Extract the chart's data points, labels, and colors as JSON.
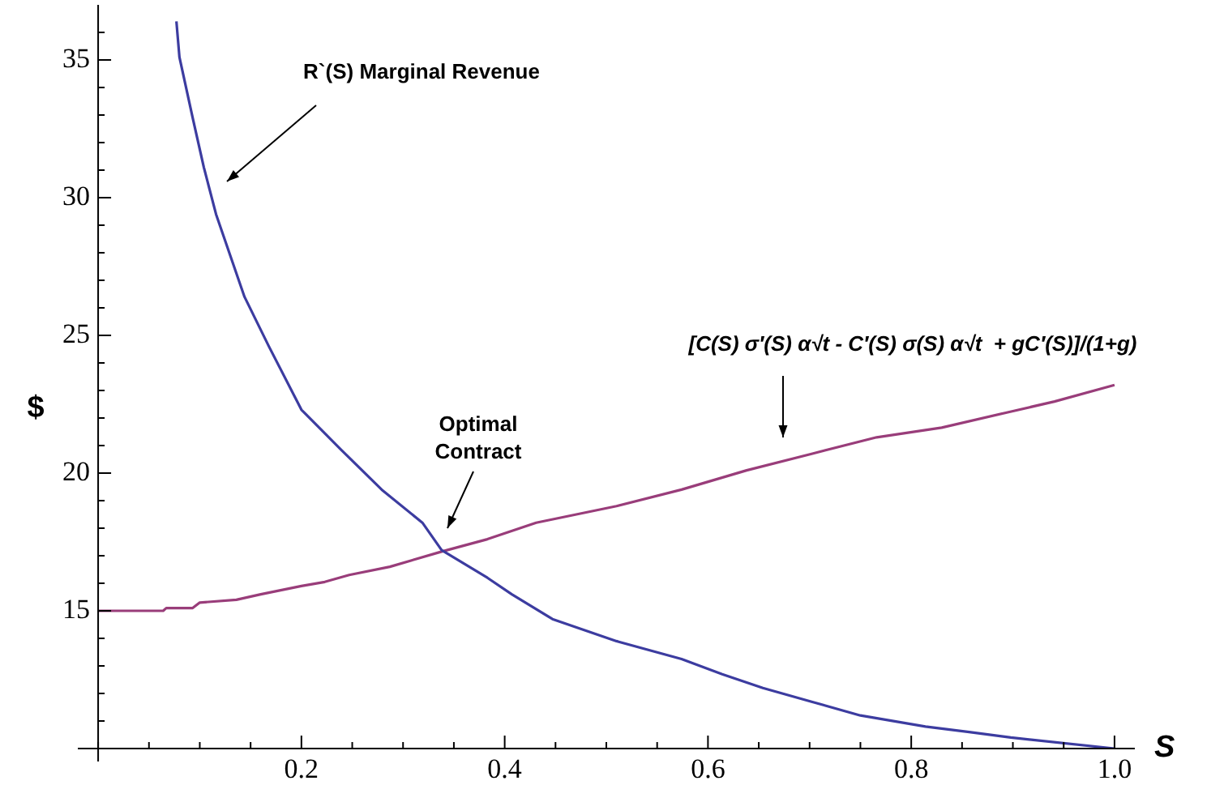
{
  "chart_data": {
    "type": "line",
    "xlabel": "S",
    "ylabel": "$",
    "xlim": [
      -0.02,
      1.02
    ],
    "ylim": [
      10,
      37
    ],
    "xticks": [
      {
        "value": 0,
        "label": null
      },
      {
        "value": 0.05,
        "label": null
      },
      {
        "value": 0.1,
        "label": null
      },
      {
        "value": 0.15,
        "label": null
      },
      {
        "value": 0.2,
        "label": "0.2"
      },
      {
        "value": 0.25,
        "label": null
      },
      {
        "value": 0.3,
        "label": null
      },
      {
        "value": 0.35,
        "label": null
      },
      {
        "value": 0.4,
        "label": "0.4"
      },
      {
        "value": 0.45,
        "label": null
      },
      {
        "value": 0.5,
        "label": null
      },
      {
        "value": 0.55,
        "label": null
      },
      {
        "value": 0.6,
        "label": "0.6"
      },
      {
        "value": 0.65,
        "label": null
      },
      {
        "value": 0.7,
        "label": null
      },
      {
        "value": 0.75,
        "label": null
      },
      {
        "value": 0.8,
        "label": "0.8"
      },
      {
        "value": 0.85,
        "label": null
      },
      {
        "value": 0.9,
        "label": null
      },
      {
        "value": 0.95,
        "label": null
      },
      {
        "value": 1.0,
        "label": "1.0"
      }
    ],
    "yticks": [
      {
        "value": 11,
        "label": null
      },
      {
        "value": 12,
        "label": null
      },
      {
        "value": 13,
        "label": null
      },
      {
        "value": 14,
        "label": null
      },
      15,
      {
        "value": 16,
        "label": null
      },
      {
        "value": 17,
        "label": null
      },
      {
        "value": 18,
        "label": null
      },
      {
        "value": 19,
        "label": null
      },
      20,
      {
        "value": 21,
        "label": null
      },
      {
        "value": 22,
        "label": null
      },
      {
        "value": 23,
        "label": null
      },
      {
        "value": 24,
        "label": null
      },
      25,
      {
        "value": 26,
        "label": null
      },
      {
        "value": 27,
        "label": null
      },
      {
        "value": 28,
        "label": null
      },
      {
        "value": 29,
        "label": null
      },
      30,
      {
        "value": 31,
        "label": null
      },
      {
        "value": 32,
        "label": null
      },
      {
        "value": 33,
        "label": null
      },
      {
        "value": 34,
        "label": null
      },
      35,
      {
        "value": 36,
        "label": null
      }
    ],
    "grid": false,
    "legend": false,
    "marker": "none",
    "line_style": "solid",
    "series": [
      {
        "color": "#3c3ca0",
        "x": [
          0.077,
          0.08,
          0.093,
          0.104,
          0.116,
          0.144,
          0.168,
          0.2,
          0.239,
          0.279,
          0.319,
          0.338,
          0.383,
          0.407,
          0.447,
          0.51,
          0.574,
          0.614,
          0.654,
          0.702,
          0.75,
          0.814,
          0.857,
          0.898,
          1.0
        ],
        "values": [
          36.4,
          35.1,
          32.9,
          31.1,
          29.4,
          26.4,
          24.6,
          22.3,
          20.85,
          19.4,
          18.2,
          17.2,
          16.2,
          15.6,
          14.7,
          13.9,
          13.25,
          12.7,
          12.2,
          11.7,
          11.2,
          10.8,
          10.6,
          10.4,
          10.0
        ]
      },
      {
        "color": "#993d7a",
        "x": [
          0,
          0.064,
          0.067,
          0.093,
          0.1,
          0.136,
          0.16,
          0.2,
          0.223,
          0.247,
          0.287,
          0.338,
          0.383,
          0.431,
          0.51,
          0.574,
          0.638,
          0.702,
          0.766,
          0.83,
          0.894,
          0.941,
          1.0
        ],
        "values": [
          15.0,
          15.0,
          15.1,
          15.1,
          15.3,
          15.4,
          15.6,
          15.9,
          16.05,
          16.3,
          16.6,
          17.15,
          17.6,
          18.2,
          18.8,
          19.4,
          20.1,
          20.7,
          21.3,
          21.65,
          22.2,
          22.6,
          23.2
        ]
      }
    ],
    "annotations": [
      "R`(S) Marginal Revenue",
      "Optimal Contract",
      "[C(S) σ′(S) α√t - C′(S) σ(S) α√t  + gC′(S)]/(1+g)"
    ]
  }
}
